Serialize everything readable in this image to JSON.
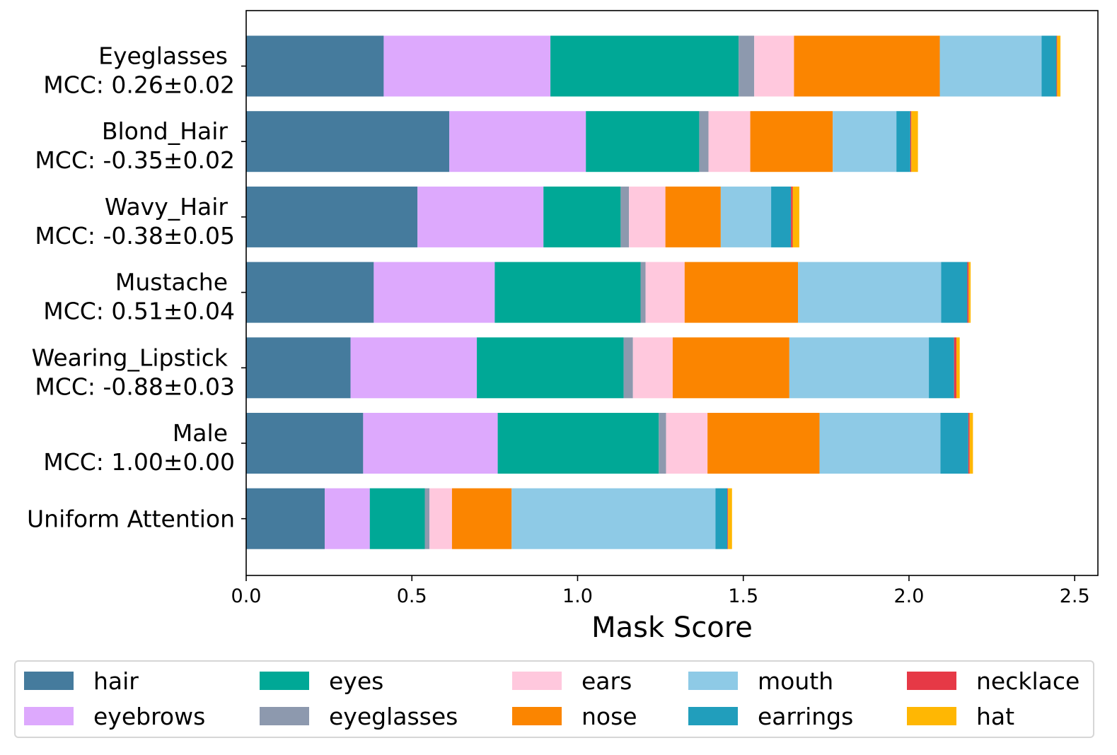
{
  "chart_data": {
    "type": "bar",
    "orientation": "horizontal",
    "stacked": true,
    "title": "",
    "xlabel": "Mask Score",
    "ylabel": "",
    "xlim": [
      0,
      2.57
    ],
    "xticks": [
      0.0,
      0.5,
      1.0,
      1.5,
      2.0,
      2.5
    ],
    "xtick_labels": [
      "0.0",
      "0.5",
      "1.0",
      "1.5",
      "2.0",
      "2.5"
    ],
    "categories": [
      {
        "name": "Eyeglasses",
        "mcc": "MCC: 0.26±0.02"
      },
      {
        "name": "Blond_Hair",
        "mcc": "MCC: -0.35±0.02"
      },
      {
        "name": "Wavy_Hair",
        "mcc": "MCC: -0.38±0.05"
      },
      {
        "name": "Mustache",
        "mcc": "MCC: 0.51±0.04"
      },
      {
        "name": "Wearing_Lipstick",
        "mcc": "MCC: -0.88±0.03"
      },
      {
        "name": "Male",
        "mcc": "MCC: 1.00±0.00"
      },
      {
        "name": "Uniform Attention",
        "mcc": ""
      }
    ],
    "series": [
      {
        "name": "hair",
        "color": "#457b9d",
        "values": [
          0.415,
          0.613,
          0.517,
          0.385,
          0.315,
          0.353,
          0.237
        ]
      },
      {
        "name": "eyebrows",
        "color": "#dda9fd",
        "values": [
          0.503,
          0.412,
          0.38,
          0.365,
          0.381,
          0.406,
          0.136
        ]
      },
      {
        "name": "eyes",
        "color": "#00a896",
        "values": [
          0.568,
          0.342,
          0.233,
          0.44,
          0.443,
          0.486,
          0.166
        ]
      },
      {
        "name": "eyeglasses",
        "color": "#8d99ae",
        "values": [
          0.047,
          0.028,
          0.025,
          0.015,
          0.028,
          0.022,
          0.014
        ]
      },
      {
        "name": "ears",
        "color": "#ffc8dd",
        "values": [
          0.12,
          0.126,
          0.11,
          0.118,
          0.12,
          0.125,
          0.068
        ]
      },
      {
        "name": "nose",
        "color": "#fb8500",
        "values": [
          0.44,
          0.249,
          0.167,
          0.342,
          0.352,
          0.338,
          0.18
        ]
      },
      {
        "name": "mouth",
        "color": "#8ecae6",
        "values": [
          0.307,
          0.192,
          0.152,
          0.432,
          0.421,
          0.365,
          0.615
        ]
      },
      {
        "name": "earrings",
        "color": "#219ebc",
        "values": [
          0.045,
          0.042,
          0.06,
          0.079,
          0.076,
          0.084,
          0.036
        ]
      },
      {
        "name": "necklace",
        "color": "#e63946",
        "values": [
          0.002,
          0.003,
          0.005,
          0.004,
          0.007,
          0.004,
          0.002
        ]
      },
      {
        "name": "hat",
        "color": "#ffb703",
        "values": [
          0.01,
          0.02,
          0.02,
          0.006,
          0.01,
          0.01,
          0.012
        ]
      }
    ],
    "legend": {
      "location": "bottom",
      "columns": 6,
      "frame": true
    },
    "grid": false
  }
}
